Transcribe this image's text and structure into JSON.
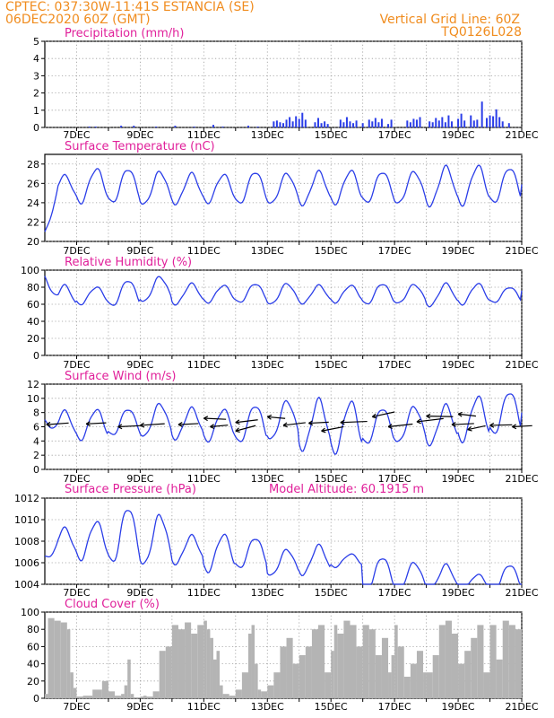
{
  "header": {
    "station_line": "CPTEC:   037:30W-11:41S   ESTANCIA (SE)",
    "date_line": "06DEC2020 60Z (GMT)",
    "grid_note": "Vertical Grid Line: 60Z",
    "run_id": "TQ0126L028"
  },
  "colors": {
    "header": "#f08c1e",
    "title": "#e0209a",
    "line": "#2b3ee8",
    "precip": "#2b3ee8",
    "cloud": "#b4b4b4",
    "grid": "#9a9a9a"
  },
  "chart_data": [
    {
      "type": "bar",
      "title": "Precipitation (mm/h)",
      "ylim": [
        0,
        5
      ],
      "yticks": [
        "0",
        "1",
        "2",
        "3",
        "4",
        "5"
      ],
      "xticks": [
        "7DEC",
        "9DEC",
        "11DEC",
        "13DEC",
        "15DEC",
        "17DEC",
        "19DEC",
        "21DEC"
      ],
      "x": [
        7.4,
        7.6,
        8.4,
        8.8,
        9.5,
        10.1,
        10.7,
        11.3,
        11.6,
        12.4,
        12.7,
        13.2,
        13.3,
        13.4,
        13.5,
        13.6,
        13.7,
        13.8,
        13.9,
        14.0,
        14.1,
        14.2,
        14.5,
        14.6,
        14.7,
        14.8,
        14.9,
        15.3,
        15.4,
        15.5,
        15.6,
        15.7,
        15.8,
        16.0,
        16.2,
        16.3,
        16.4,
        16.5,
        16.6,
        16.8,
        16.9,
        17.4,
        17.5,
        17.6,
        17.7,
        17.8,
        18.1,
        18.2,
        18.3,
        18.4,
        18.5,
        18.6,
        18.7,
        18.8,
        19.0,
        19.1,
        19.2,
        19.4,
        19.5,
        19.6,
        19.75,
        19.9,
        20.0,
        20.1,
        20.2,
        20.3,
        20.4,
        20.6
      ],
      "values": [
        0.05,
        0.05,
        0.1,
        0.1,
        0.05,
        0.1,
        0.05,
        0.15,
        0.05,
        0.1,
        0.05,
        0.35,
        0.4,
        0.3,
        0.25,
        0.45,
        0.6,
        0.35,
        0.65,
        0.5,
        0.85,
        0.45,
        0.3,
        0.55,
        0.25,
        0.35,
        0.2,
        0.45,
        0.3,
        0.6,
        0.35,
        0.25,
        0.4,
        0.25,
        0.45,
        0.35,
        0.55,
        0.3,
        0.5,
        0.2,
        0.45,
        0.4,
        0.3,
        0.5,
        0.45,
        0.6,
        0.35,
        0.3,
        0.55,
        0.4,
        0.6,
        0.3,
        0.7,
        0.35,
        0.5,
        0.8,
        0.4,
        0.7,
        0.4,
        0.45,
        1.5,
        0.55,
        0.7,
        0.65,
        1.05,
        0.6,
        0.35,
        0.25
      ]
    },
    {
      "type": "line",
      "title": "Surface Temperature (nC)",
      "ylim": [
        20,
        29
      ],
      "yticks": [
        "20",
        "22",
        "24",
        "26",
        "28"
      ],
      "xticks": [
        "7DEC",
        "9DEC",
        "11DEC",
        "13DEC",
        "15DEC",
        "17DEC",
        "19DEC",
        "21DEC"
      ],
      "daily_max": [
        26.8,
        27.5,
        27.5,
        27.2,
        27.0,
        26.9,
        27.2,
        27.0,
        27.2,
        27.3,
        27.2,
        27.2,
        27.7,
        27.8,
        27.6
      ],
      "daily_min": [
        24.2,
        24.0,
        24.0,
        23.8,
        23.9,
        24.0,
        23.9,
        23.9,
        23.8,
        23.9,
        24.0,
        23.9,
        23.7,
        23.8,
        24.0
      ],
      "start_value": 21.0,
      "end_value": 25.9
    },
    {
      "type": "line",
      "title": "Relative Humidity (%)",
      "ylim": [
        0,
        100
      ],
      "yticks": [
        "0",
        "20",
        "40",
        "60",
        "80",
        "100"
      ],
      "xticks": [
        "7DEC",
        "9DEC",
        "11DEC",
        "13DEC",
        "15DEC",
        "17DEC",
        "19DEC",
        "21DEC"
      ],
      "daily_max": [
        82,
        80,
        88,
        92,
        84,
        82,
        84,
        84,
        82,
        82,
        84,
        83,
        84,
        84,
        80
      ],
      "daily_min": [
        55,
        60,
        58,
        63,
        60,
        62,
        62,
        60,
        61,
        62,
        60,
        61,
        58,
        60,
        62
      ],
      "start_value": 93,
      "end_value": 76
    },
    {
      "type": "line",
      "title": "Surface Wind (m/s)",
      "ylim": [
        0,
        12
      ],
      "yticks": [
        "0",
        "2",
        "4",
        "6",
        "8",
        "10",
        "12"
      ],
      "xticks": [
        "7DEC",
        "9DEC",
        "11DEC",
        "13DEC",
        "15DEC",
        "17DEC",
        "19DEC",
        "21DEC"
      ],
      "daily_max": [
        8.2,
        8.4,
        8.5,
        9.2,
        8.6,
        8.4,
        9.0,
        9.6,
        9.8,
        9.5,
        8.6,
        8.8,
        9.0,
        10.2,
        10.9
      ],
      "daily_min": [
        4.2,
        4.2,
        4.8,
        4.6,
        4.3,
        4.0,
        3.8,
        4.2,
        2.8,
        2.4,
        3.6,
        3.8,
        3.5,
        4.0,
        5.0
      ],
      "start_value": 7.0,
      "end_value": 8.0,
      "wind_arrows": [
        {
          "x": 6.05,
          "y": 6.3,
          "dx": 1.0,
          "dy": 0.3
        },
        {
          "x": 7.3,
          "y": 6.4,
          "dx": 0.9,
          "dy": 0.2
        },
        {
          "x": 8.3,
          "y": 6.0,
          "dx": 1.0,
          "dy": 0.2
        },
        {
          "x": 9.0,
          "y": 6.2,
          "dx": 1.1,
          "dy": 0.3
        },
        {
          "x": 10.2,
          "y": 6.3,
          "dx": 0.9,
          "dy": 0.2
        },
        {
          "x": 11.0,
          "y": 7.2,
          "dx": 1.0,
          "dy": -0.2
        },
        {
          "x": 11.2,
          "y": 6.0,
          "dx": 0.8,
          "dy": 0.3
        },
        {
          "x": 12.0,
          "y": 6.6,
          "dx": 1.0,
          "dy": 0.5
        },
        {
          "x": 12.0,
          "y": 5.4,
          "dx": 0.9,
          "dy": 1.0
        },
        {
          "x": 13.0,
          "y": 7.4,
          "dx": 0.8,
          "dy": -0.3
        },
        {
          "x": 13.5,
          "y": 6.2,
          "dx": 1.0,
          "dy": 0.5
        },
        {
          "x": 14.3,
          "y": 6.5,
          "dx": 0.9,
          "dy": 0.2
        },
        {
          "x": 14.7,
          "y": 5.4,
          "dx": 1.0,
          "dy": 0.8
        },
        {
          "x": 15.3,
          "y": 6.6,
          "dx": 1.2,
          "dy": 0.2
        },
        {
          "x": 16.3,
          "y": 7.4,
          "dx": 1.0,
          "dy": 0.9
        },
        {
          "x": 16.8,
          "y": 6.0,
          "dx": 1.1,
          "dy": 0.5
        },
        {
          "x": 17.7,
          "y": 6.7,
          "dx": 1.2,
          "dy": 0.6
        },
        {
          "x": 18.0,
          "y": 7.5,
          "dx": 1.2,
          "dy": -0.1
        },
        {
          "x": 18.8,
          "y": 6.3,
          "dx": 1.0,
          "dy": 0.2
        },
        {
          "x": 19.0,
          "y": 7.8,
          "dx": 0.8,
          "dy": -0.4
        },
        {
          "x": 19.3,
          "y": 5.6,
          "dx": 0.8,
          "dy": 0.7
        },
        {
          "x": 20.0,
          "y": 6.2,
          "dx": 1.0,
          "dy": 0.1
        },
        {
          "x": 20.7,
          "y": 6.0,
          "dx": 0.9,
          "dy": 0.2
        }
      ]
    },
    {
      "type": "line",
      "title": "Surface Pressure (hPa)",
      "annotation": "Model Altitude: 60.1915 m",
      "ylim": [
        1004,
        1012
      ],
      "yticks": [
        "1004",
        "1006",
        "1008",
        "1010",
        "1012"
      ],
      "xticks": [
        "7DEC",
        "9DEC",
        "11DEC",
        "13DEC",
        "15DEC",
        "17DEC",
        "19DEC",
        "21DEC"
      ],
      "daily_max": [
        1009.2,
        1009.8,
        1011.1,
        1010.4,
        1008.5,
        1008.6,
        1008.3,
        1007.2,
        1007.6,
        1006.8,
        1006.5,
        1006.0,
        1005.8,
        1004.9,
        1005.8
      ],
      "daily_min": [
        1006.5,
        1006.3,
        1006.0,
        1005.8,
        1005.9,
        1005.2,
        1005.5,
        1004.8,
        1004.9,
        1005.6,
        1003.4,
        1003.4,
        1003.4,
        1003.4,
        1003.4
      ],
      "start_value": 1006.6,
      "end_value": 1003.6
    },
    {
      "type": "area",
      "title": "Cloud Cover (%)",
      "ylim": [
        0,
        100
      ],
      "yticks": [
        "0",
        "20",
        "40",
        "60",
        "80",
        "100"
      ],
      "xticks": [
        "7DEC",
        "9DEC",
        "11DEC",
        "13DEC",
        "15DEC",
        "17DEC",
        "19DEC",
        "21DEC"
      ],
      "x": [
        6.0,
        6.1,
        6.3,
        6.5,
        6.7,
        6.8,
        6.9,
        7.0,
        7.2,
        7.5,
        7.8,
        8.0,
        8.2,
        8.4,
        8.5,
        8.6,
        8.7,
        8.8,
        9.0,
        9.1,
        9.2,
        9.4,
        9.6,
        9.8,
        10.0,
        10.2,
        10.4,
        10.6,
        10.8,
        11.0,
        11.1,
        11.2,
        11.3,
        11.4,
        11.5,
        11.6,
        11.8,
        12.0,
        12.2,
        12.4,
        12.5,
        12.6,
        12.7,
        12.8,
        13.0,
        13.2,
        13.4,
        13.6,
        13.8,
        14.0,
        14.2,
        14.4,
        14.6,
        14.8,
        15.0,
        15.1,
        15.2,
        15.4,
        15.6,
        15.8,
        16.0,
        16.2,
        16.4,
        16.6,
        16.8,
        16.9,
        17.0,
        17.1,
        17.3,
        17.5,
        17.7,
        17.9,
        18.0,
        18.2,
        18.4,
        18.6,
        18.8,
        19.0,
        19.2,
        19.4,
        19.6,
        19.8,
        20.0,
        20.2,
        20.4,
        20.6,
        20.8,
        21.0
      ],
      "values": [
        5,
        93,
        90,
        88,
        80,
        30,
        12,
        2,
        3,
        10,
        20,
        8,
        3,
        5,
        15,
        45,
        5,
        1,
        2,
        3,
        2,
        8,
        55,
        60,
        85,
        80,
        88,
        75,
        85,
        90,
        80,
        70,
        45,
        55,
        15,
        5,
        3,
        10,
        30,
        75,
        85,
        40,
        10,
        8,
        15,
        30,
        60,
        70,
        40,
        50,
        60,
        80,
        85,
        30,
        55,
        85,
        75,
        90,
        85,
        60,
        85,
        80,
        50,
        70,
        30,
        50,
        85,
        60,
        25,
        40,
        55,
        30,
        30,
        50,
        85,
        90,
        75,
        40,
        55,
        70,
        85,
        30,
        85,
        45,
        90,
        85,
        80,
        88
      ]
    }
  ]
}
